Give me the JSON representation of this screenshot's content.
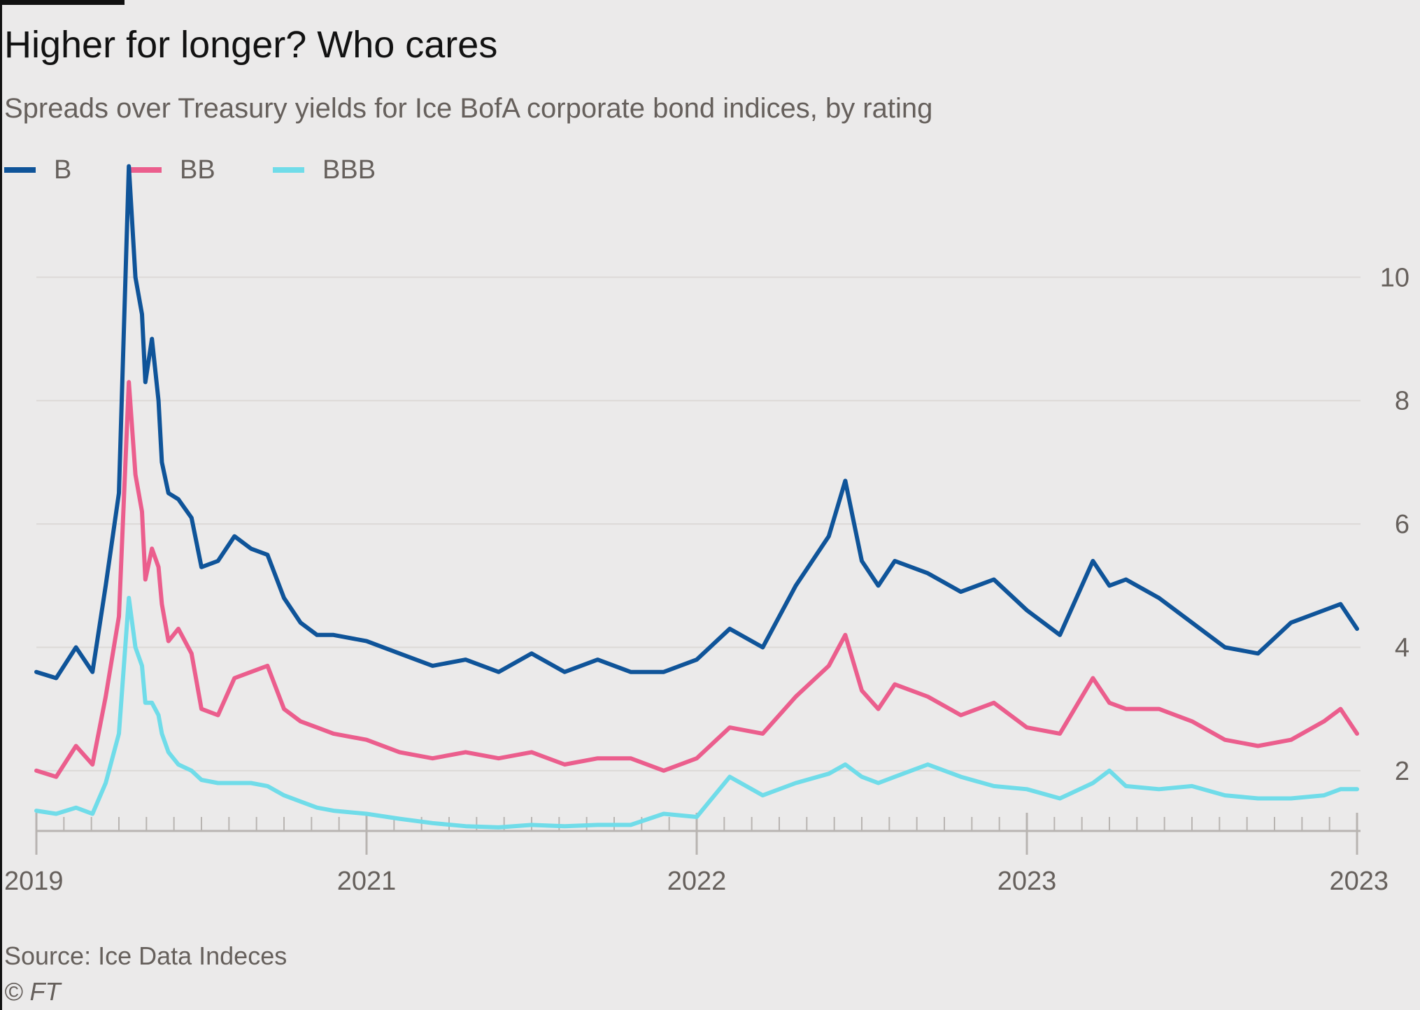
{
  "header": {
    "title": "Higher for longer? Who cares",
    "subtitle": "Spreads over Treasury yields for Ice BofA corporate bond indices, by rating"
  },
  "footer": {
    "source": "Source: Ice Data Indeces",
    "credit": "© FT"
  },
  "legend": {
    "placement": "top-left",
    "items": [
      {
        "label": "B",
        "color": "#0f5499"
      },
      {
        "label": "BB",
        "color": "#eb5e8d"
      },
      {
        "label": "BBB",
        "color": "#70dce9"
      }
    ]
  },
  "chart_data": {
    "type": "line",
    "title": "Higher for longer? Who cares",
    "subtitle": "Spreads over Treasury yields for Ice BofA corporate bond indices, by rating",
    "xlabel": "",
    "ylabel": "",
    "grid": true,
    "y_axis_side": "right",
    "ylim": [
      1.0,
      12.0
    ],
    "y_ticks": [
      2,
      4,
      6,
      8,
      10
    ],
    "y_tick_labels": [
      "2",
      "4",
      "6",
      "8",
      "10"
    ],
    "x_ticks": [
      0,
      1,
      2,
      3,
      4
    ],
    "x_tick_labels": [
      "2019",
      "2021",
      "2022",
      "2023",
      "2023"
    ],
    "x_minor_ticks_per_interval": 11,
    "x": [
      0.0,
      0.06,
      0.12,
      0.17,
      0.21,
      0.25,
      0.28,
      0.3,
      0.32,
      0.33,
      0.35,
      0.37,
      0.38,
      0.4,
      0.43,
      0.47,
      0.5,
      0.55,
      0.6,
      0.65,
      0.7,
      0.75,
      0.8,
      0.85,
      0.9,
      1.0,
      1.1,
      1.2,
      1.3,
      1.4,
      1.5,
      1.6,
      1.7,
      1.8,
      1.9,
      2.0,
      2.1,
      2.2,
      2.3,
      2.4,
      2.45,
      2.5,
      2.55,
      2.6,
      2.7,
      2.8,
      2.9,
      3.0,
      3.1,
      3.2,
      3.25,
      3.3,
      3.4,
      3.5,
      3.6,
      3.7,
      3.8,
      3.9,
      3.95,
      4.0
    ],
    "series": [
      {
        "name": "B",
        "color": "#0f5499",
        "values": [
          3.6,
          3.5,
          4.0,
          3.6,
          5.0,
          6.5,
          11.8,
          10.0,
          9.4,
          8.3,
          9.0,
          8.0,
          7.0,
          6.5,
          6.4,
          6.1,
          5.3,
          5.4,
          5.8,
          5.6,
          5.5,
          4.8,
          4.4,
          4.2,
          4.2,
          4.1,
          3.9,
          3.7,
          3.8,
          3.6,
          3.9,
          3.6,
          3.8,
          3.6,
          3.6,
          3.8,
          4.3,
          4.0,
          5.0,
          5.8,
          6.7,
          5.4,
          5.0,
          5.4,
          5.2,
          4.9,
          5.1,
          4.6,
          4.2,
          5.4,
          5.0,
          5.1,
          4.8,
          4.4,
          4.0,
          3.9,
          4.4,
          4.6,
          4.7,
          4.3
        ]
      },
      {
        "name": "BB",
        "color": "#eb5e8d",
        "values": [
          2.0,
          1.9,
          2.4,
          2.1,
          3.2,
          4.5,
          8.3,
          6.8,
          6.2,
          5.1,
          5.6,
          5.3,
          4.7,
          4.1,
          4.3,
          3.9,
          3.0,
          2.9,
          3.5,
          3.6,
          3.7,
          3.0,
          2.8,
          2.7,
          2.6,
          2.5,
          2.3,
          2.2,
          2.3,
          2.2,
          2.3,
          2.1,
          2.2,
          2.2,
          2.0,
          2.2,
          2.7,
          2.6,
          3.2,
          3.7,
          4.2,
          3.3,
          3.0,
          3.4,
          3.2,
          2.9,
          3.1,
          2.7,
          2.6,
          3.5,
          3.1,
          3.0,
          3.0,
          2.8,
          2.5,
          2.4,
          2.5,
          2.8,
          3.0,
          2.6
        ]
      },
      {
        "name": "BBB",
        "color": "#70dce9",
        "values": [
          1.35,
          1.3,
          1.4,
          1.3,
          1.8,
          2.6,
          4.8,
          4.0,
          3.7,
          3.1,
          3.1,
          2.9,
          2.6,
          2.3,
          2.1,
          2.0,
          1.85,
          1.8,
          1.8,
          1.8,
          1.75,
          1.6,
          1.5,
          1.4,
          1.35,
          1.3,
          1.22,
          1.15,
          1.1,
          1.08,
          1.12,
          1.1,
          1.12,
          1.12,
          1.3,
          1.25,
          1.9,
          1.6,
          1.8,
          1.95,
          2.1,
          1.9,
          1.8,
          1.9,
          2.1,
          1.9,
          1.75,
          1.7,
          1.55,
          1.8,
          2.0,
          1.75,
          1.7,
          1.75,
          1.6,
          1.55,
          1.55,
          1.6,
          1.7,
          1.7
        ]
      }
    ]
  }
}
